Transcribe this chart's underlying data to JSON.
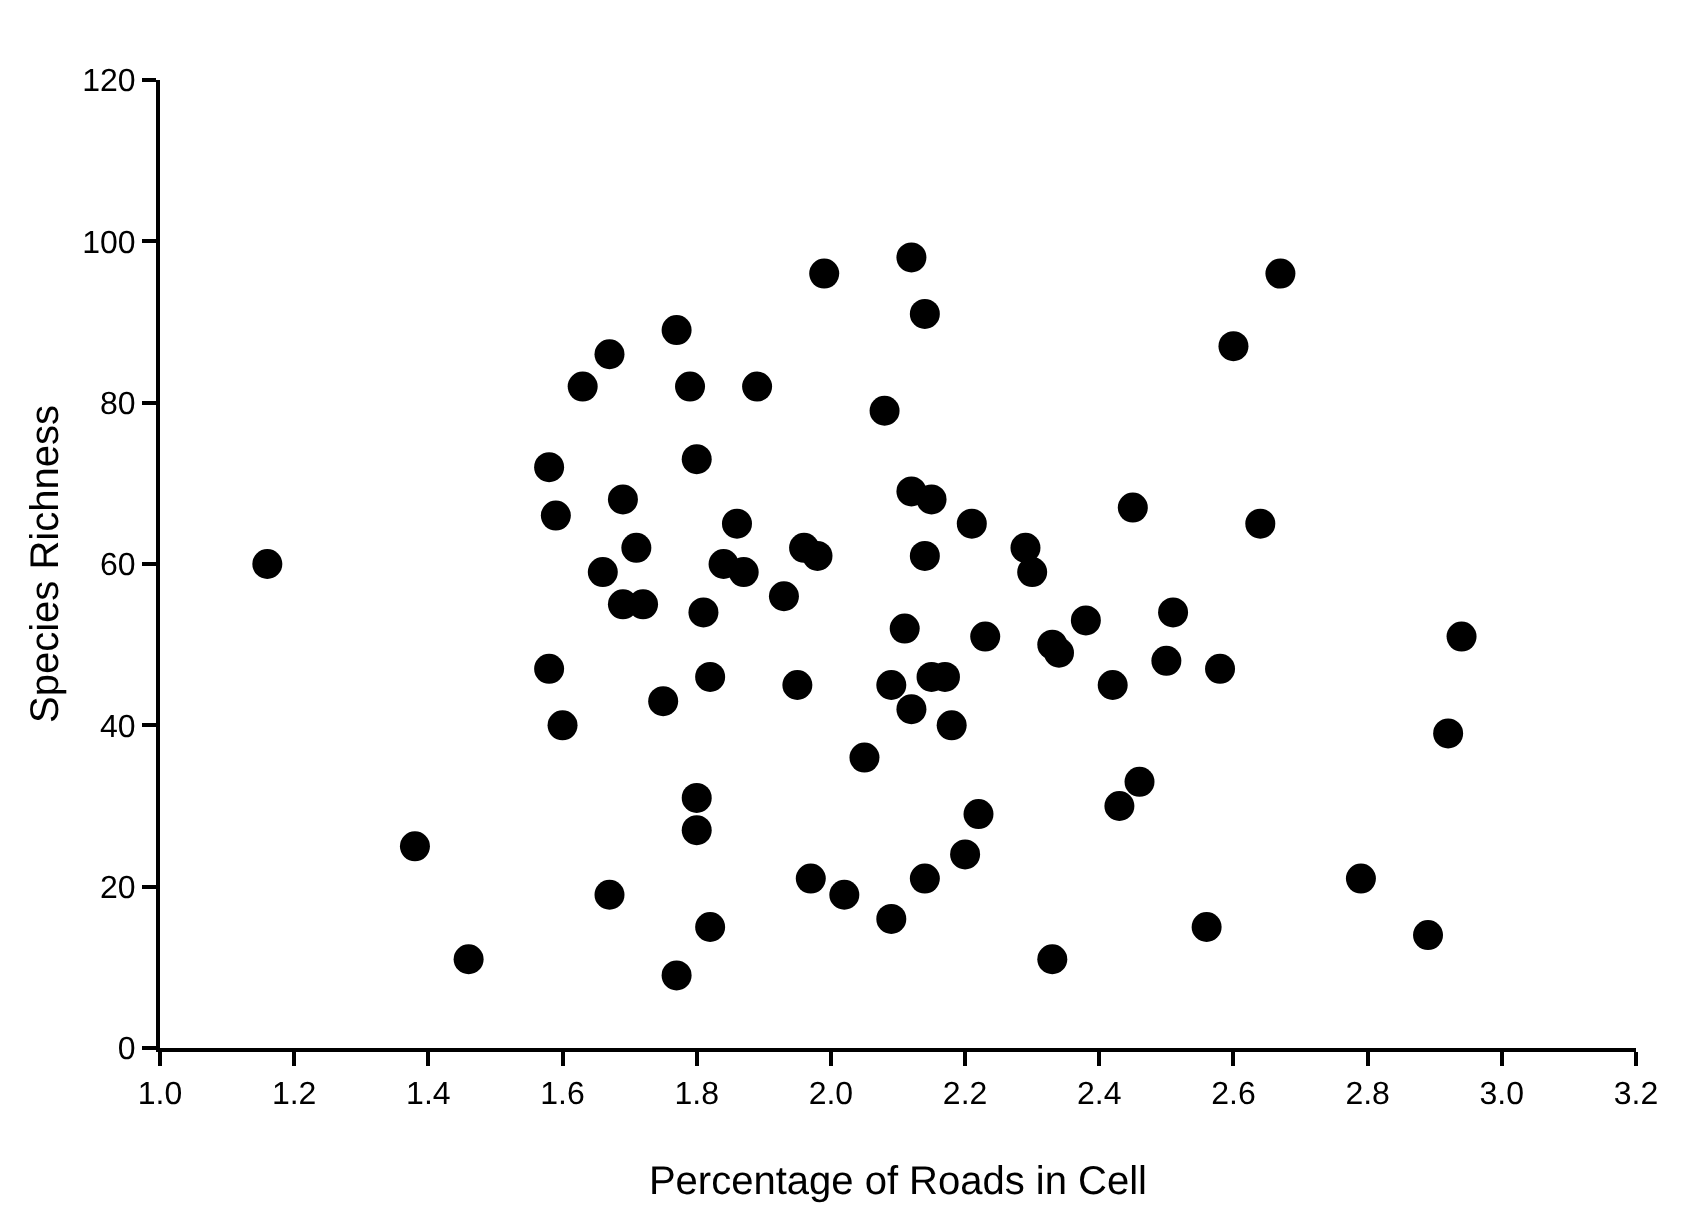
{
  "chart_data": {
    "type": "scatter",
    "xlabel": "Percentage of Roads in Cell",
    "ylabel": "Species Richness",
    "marker": "circle",
    "xlim": [
      1.0,
      3.2
    ],
    "xticks": [
      {
        "value": 1.0,
        "label": "1.0"
      },
      1.2,
      1.4,
      1.6,
      1.8,
      {
        "value": 2.0,
        "label": "2.0"
      },
      2.2,
      2.4,
      2.6,
      2.8,
      {
        "value": 3.0,
        "label": "3.0"
      },
      3.2
    ],
    "ylim": [
      0,
      120
    ],
    "yticks": [
      0,
      20,
      40,
      60,
      80,
      100,
      120
    ],
    "series": [
      {
        "color": "#000000",
        "x": [
          1.16,
          1.38,
          1.46,
          1.58,
          1.59,
          1.58,
          1.6,
          1.63,
          1.67,
          1.66,
          1.69,
          1.69,
          1.71,
          1.72,
          1.67,
          1.75,
          1.77,
          1.79,
          1.8,
          1.81,
          1.82,
          1.8,
          1.8,
          1.82,
          1.77,
          1.84,
          1.86,
          1.87,
          1.89,
          1.93,
          1.95,
          1.96,
          1.98,
          1.97,
          1.99,
          2.02,
          2.05,
          2.08,
          2.09,
          2.09,
          2.11,
          2.12,
          2.12,
          2.12,
          2.14,
          2.14,
          2.15,
          2.14,
          2.15,
          2.17,
          2.18,
          2.21,
          2.2,
          2.22,
          2.23,
          2.29,
          2.3,
          2.33,
          2.34,
          2.33,
          2.38,
          2.42,
          2.43,
          2.45,
          2.46,
          2.5,
          2.51,
          2.56,
          2.58,
          2.6,
          2.64,
          2.67,
          2.79,
          2.89,
          2.92,
          2.94
        ],
        "values": [
          60,
          25,
          11,
          72,
          66,
          47,
          40,
          82,
          86,
          59,
          68,
          55,
          62,
          55,
          19,
          43,
          89,
          82,
          73,
          54,
          46,
          31,
          27,
          15,
          9,
          60,
          65,
          59,
          82,
          56,
          45,
          62,
          61,
          21,
          96,
          19,
          36,
          79,
          45,
          16,
          52,
          42,
          98,
          69,
          91,
          61,
          68,
          21,
          46,
          46,
          40,
          65,
          24,
          29,
          51,
          62,
          59,
          50,
          49,
          11,
          53,
          45,
          30,
          67,
          33,
          48,
          54,
          15,
          47,
          87,
          65,
          96,
          21,
          14,
          39,
          51
        ]
      }
    ]
  }
}
